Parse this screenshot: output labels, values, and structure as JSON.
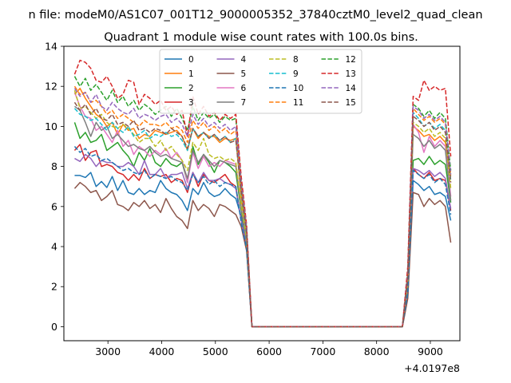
{
  "chart_data": {
    "type": "line",
    "suptitle": "n file: modeM0/AS1C07_001T12_9000005352_37840cztM0_level2_quad_clean",
    "title": "Quadrant 1 module wise count rates with 100.0s bins.",
    "xlabel": "",
    "ylabel": "",
    "x_offset_label": "+4.0197e8",
    "xlim": [
      2180,
      9550
    ],
    "ylim": [
      -0.7,
      14
    ],
    "xticks": [
      3000,
      4000,
      5000,
      6000,
      7000,
      8000,
      9000
    ],
    "yticks": [
      0,
      2,
      4,
      6,
      8,
      10,
      12,
      14
    ],
    "grid": false,
    "legend": {
      "placement": "top-center",
      "columns": 4
    },
    "x": [
      2380,
      2480,
      2580,
      2680,
      2780,
      2880,
      2980,
      3080,
      3180,
      3280,
      3380,
      3480,
      3580,
      3680,
      3780,
      3880,
      3980,
      4080,
      4180,
      4280,
      4380,
      4480,
      4580,
      4680,
      4780,
      4880,
      4980,
      5080,
      5180,
      5280,
      5380,
      5480,
      5580,
      5680,
      8480,
      8580,
      8680,
      8780,
      8880,
      8980,
      9080,
      9180,
      9280,
      9380
    ],
    "series": [
      {
        "name": "0",
        "color": "#1f77b4",
        "dash": false,
        "values": [
          7.55,
          7.55,
          7.45,
          7.7,
          7.0,
          7.25,
          6.95,
          7.5,
          6.8,
          7.3,
          6.7,
          6.6,
          6.9,
          6.6,
          6.8,
          6.7,
          7.3,
          6.9,
          6.7,
          6.6,
          6.3,
          5.8,
          6.9,
          6.6,
          7.2,
          6.7,
          6.5,
          6.6,
          6.9,
          6.6,
          6.4,
          5.5,
          4.0,
          0,
          0,
          1.5,
          7.3,
          7.1,
          6.8,
          7.0,
          6.6,
          6.7,
          6.5,
          5.3
        ]
      },
      {
        "name": "1",
        "color": "#ff7f0e",
        "dash": false,
        "values": [
          11.6,
          11.9,
          11.4,
          11.0,
          10.6,
          10.4,
          10.0,
          10.2,
          9.6,
          10.1,
          9.8,
          9.9,
          9.4,
          9.6,
          9.5,
          9.8,
          9.7,
          9.6,
          9.7,
          9.8,
          9.5,
          8.8,
          9.9,
          9.4,
          9.7,
          9.5,
          9.5,
          9.2,
          9.4,
          9.3,
          9.4,
          6.5,
          4.5,
          0,
          0,
          2.5,
          10.0,
          9.8,
          9.5,
          9.6,
          9.3,
          9.5,
          9.2,
          7.5
        ]
      },
      {
        "name": "2",
        "color": "#2ca02c",
        "dash": false,
        "values": [
          10.2,
          9.4,
          9.7,
          9.2,
          9.3,
          9.6,
          8.8,
          9.0,
          9.2,
          8.8,
          8.5,
          8.0,
          8.7,
          8.3,
          8.9,
          8.2,
          8.0,
          8.4,
          8.1,
          8.0,
          8.2,
          7.2,
          9.0,
          8.1,
          8.6,
          8.2,
          7.7,
          8.3,
          8.2,
          8.0,
          7.7,
          5.8,
          4.2,
          0,
          0,
          2.0,
          8.3,
          8.4,
          8.1,
          8.5,
          8.1,
          8.3,
          8.1,
          6.2
        ]
      },
      {
        "name": "3",
        "color": "#d62728",
        "dash": false,
        "values": [
          8.8,
          9.1,
          8.3,
          8.7,
          8.8,
          8.0,
          8.1,
          8.0,
          7.7,
          7.6,
          7.3,
          7.6,
          7.3,
          7.9,
          7.4,
          7.6,
          7.5,
          7.6,
          7.2,
          7.4,
          7.3,
          6.7,
          7.7,
          7.0,
          7.6,
          7.3,
          7.2,
          7.4,
          7.6,
          7.2,
          7.0,
          5.3,
          4.0,
          0,
          0,
          1.8,
          7.9,
          7.6,
          7.4,
          7.7,
          7.3,
          7.4,
          7.3,
          5.8
        ]
      },
      {
        "name": "4",
        "color": "#9467bd",
        "dash": false,
        "values": [
          8.4,
          8.25,
          8.6,
          8.4,
          8.0,
          8.3,
          8.2,
          8.2,
          8.0,
          8.0,
          8.2,
          8.0,
          7.6,
          8.3,
          7.6,
          7.6,
          7.9,
          7.4,
          7.6,
          7.6,
          7.7,
          6.9,
          7.7,
          7.2,
          7.7,
          7.3,
          7.3,
          7.4,
          7.2,
          7.1,
          6.9,
          5.3,
          4.1,
          0,
          0,
          1.8,
          7.9,
          7.8,
          7.6,
          7.8,
          7.5,
          7.7,
          7.4,
          5.9
        ]
      },
      {
        "name": "5",
        "color": "#8c564b",
        "dash": false,
        "values": [
          6.9,
          7.2,
          7.0,
          6.7,
          6.8,
          6.3,
          6.5,
          6.8,
          6.1,
          6.0,
          5.8,
          6.2,
          6.0,
          6.3,
          5.9,
          6.1,
          5.7,
          6.4,
          5.9,
          5.5,
          5.3,
          4.9,
          6.3,
          5.8,
          6.1,
          5.9,
          5.5,
          6.1,
          6.0,
          5.8,
          5.6,
          5.0,
          3.8,
          0,
          0,
          1.4,
          6.7,
          6.6,
          6.0,
          6.4,
          6.1,
          6.3,
          6.0,
          4.2
        ]
      },
      {
        "name": "6",
        "color": "#e377c2",
        "dash": false,
        "values": [
          11.7,
          11.0,
          10.5,
          10.4,
          9.8,
          10.0,
          9.6,
          9.2,
          9.8,
          9.0,
          9.3,
          8.6,
          9.0,
          8.8,
          8.5,
          8.8,
          8.6,
          8.9,
          8.4,
          8.7,
          8.3,
          7.2,
          8.7,
          7.9,
          8.5,
          8.0,
          8.2,
          8.0,
          8.3,
          8.2,
          8.1,
          6.0,
          4.3,
          0,
          0,
          2.2,
          10.1,
          9.7,
          8.7,
          9.5,
          9.0,
          9.3,
          9.0,
          6.5
        ]
      },
      {
        "name": "7",
        "color": "#7f7f7f",
        "dash": false,
        "values": [
          11.0,
          10.8,
          10.2,
          9.5,
          10.2,
          9.8,
          10.0,
          9.4,
          9.6,
          9.3,
          9.0,
          9.1,
          8.9,
          8.8,
          9.0,
          8.7,
          8.5,
          8.6,
          8.4,
          8.3,
          8.2,
          7.4,
          8.8,
          8.2,
          8.6,
          8.3,
          8.0,
          8.3,
          8.2,
          8.1,
          8.0,
          5.9,
          4.2,
          0,
          0,
          2.1,
          9.6,
          9.4,
          9.0,
          9.3,
          8.9,
          9.1,
          8.8,
          6.3
        ]
      },
      {
        "name": "8",
        "color": "#bcbd22",
        "dash": true,
        "values": [
          11.8,
          10.9,
          11.0,
          10.7,
          10.4,
          10.6,
          10.2,
          10.0,
          9.9,
          10.1,
          9.9,
          9.6,
          9.2,
          9.4,
          9.4,
          9.0,
          9.3,
          8.8,
          9.0,
          8.6,
          8.3,
          7.8,
          9.2,
          8.8,
          9.4,
          8.6,
          8.4,
          8.5,
          8.3,
          8.4,
          8.2,
          6.1,
          4.4,
          0,
          0,
          2.3,
          10.2,
          10.0,
          9.7,
          9.9,
          9.5,
          9.7,
          9.4,
          6.9
        ]
      },
      {
        "name": "9",
        "color": "#17becf",
        "dash": true,
        "values": [
          10.9,
          10.6,
          10.5,
          10.3,
          10.4,
          10.1,
          9.8,
          10.2,
          9.9,
          9.7,
          10.0,
          9.5,
          9.6,
          9.8,
          9.4,
          9.6,
          9.5,
          9.7,
          9.5,
          9.6,
          9.3,
          8.8,
          9.9,
          9.5,
          9.7,
          9.4,
          9.6,
          9.3,
          9.5,
          9.2,
          9.4,
          6.7,
          4.6,
          0,
          0,
          2.5,
          10.7,
          10.4,
          10.0,
          10.2,
          9.9,
          10.1,
          9.8,
          7.3
        ]
      },
      {
        "name": "10",
        "color": "#1f77b4",
        "dash": true,
        "values": [
          9.0,
          8.7,
          8.9,
          8.5,
          8.6,
          8.3,
          8.4,
          8.2,
          8.0,
          7.8,
          7.9,
          7.7,
          7.6,
          7.8,
          7.4,
          7.6,
          7.5,
          7.4,
          7.5,
          7.3,
          7.2,
          6.8,
          7.6,
          7.2,
          7.5,
          7.1,
          7.3,
          7.0,
          7.2,
          7.1,
          7.0,
          5.2,
          3.9,
          0,
          0,
          1.7,
          7.8,
          7.6,
          7.4,
          7.6,
          7.2,
          7.4,
          7.1,
          5.6
        ]
      },
      {
        "name": "11",
        "color": "#ff7f0e",
        "dash": true,
        "values": [
          12.0,
          11.6,
          11.7,
          11.2,
          11.3,
          11.0,
          10.6,
          10.8,
          10.4,
          10.6,
          10.4,
          10.2,
          10.0,
          10.3,
          10.1,
          10.1,
          10.0,
          10.2,
          9.9,
          10.0,
          9.8,
          9.2,
          10.3,
          9.9,
          10.2,
          9.8,
          10.0,
          9.7,
          9.9,
          9.6,
          9.8,
          7.0,
          4.8,
          0,
          0,
          2.6,
          10.9,
          10.6,
          10.3,
          10.5,
          10.2,
          10.4,
          10.1,
          7.6
        ]
      },
      {
        "name": "12",
        "color": "#2ca02c",
        "dash": true,
        "values": [
          12.5,
          12.0,
          12.4,
          11.8,
          12.1,
          11.7,
          11.3,
          11.8,
          11.2,
          11.5,
          11.0,
          11.3,
          10.8,
          11.1,
          10.9,
          10.6,
          10.8,
          11.0,
          10.5,
          10.9,
          10.4,
          9.8,
          11.0,
          10.3,
          10.7,
          10.4,
          10.6,
          10.2,
          10.5,
          10.3,
          10.4,
          7.3,
          5.0,
          0,
          0,
          2.8,
          11.1,
          10.9,
          10.5,
          10.8,
          10.4,
          10.7,
          10.4,
          7.8
        ]
      },
      {
        "name": "13",
        "color": "#d62728",
        "dash": true,
        "values": [
          12.6,
          13.3,
          13.2,
          12.9,
          12.3,
          12.2,
          12.5,
          12.0,
          11.4,
          11.6,
          12.3,
          12.2,
          11.1,
          11.6,
          11.4,
          11.1,
          11.3,
          10.8,
          11.0,
          10.6,
          10.8,
          9.5,
          11.5,
          10.6,
          11.0,
          10.5,
          10.7,
          10.3,
          10.6,
          10.4,
          10.6,
          7.5,
          5.1,
          0,
          0,
          3.0,
          11.5,
          11.3,
          12.3,
          11.8,
          12.0,
          11.8,
          11.9,
          8.5
        ]
      },
      {
        "name": "14",
        "color": "#9467bd",
        "dash": true,
        "values": [
          11.9,
          11.5,
          11.7,
          11.2,
          11.6,
          11.0,
          10.8,
          11.2,
          10.9,
          10.7,
          10.6,
          10.9,
          10.4,
          10.6,
          10.5,
          10.3,
          10.5,
          10.6,
          10.2,
          10.4,
          10.1,
          9.5,
          10.6,
          10.1,
          10.4,
          10.0,
          10.2,
          9.9,
          10.1,
          9.8,
          10.0,
          7.1,
          4.9,
          0,
          0,
          2.6,
          11.0,
          10.8,
          10.4,
          10.6,
          10.3,
          10.5,
          10.2,
          7.6
        ]
      },
      {
        "name": "15",
        "color": "#8c564b",
        "dash": true,
        "values": [
          11.2,
          10.8,
          11.1,
          10.6,
          10.9,
          10.4,
          10.3,
          10.6,
          10.1,
          10.2,
          10.0,
          10.3,
          9.8,
          9.9,
          9.7,
          9.9,
          9.8,
          9.6,
          9.9,
          9.7,
          9.5,
          8.9,
          9.9,
          9.5,
          9.7,
          9.4,
          9.6,
          9.3,
          9.5,
          9.2,
          9.3,
          6.8,
          4.7,
          0,
          0,
          2.4,
          10.5,
          10.3,
          10.0,
          10.2,
          9.8,
          10.0,
          9.7,
          7.2
        ]
      }
    ]
  }
}
